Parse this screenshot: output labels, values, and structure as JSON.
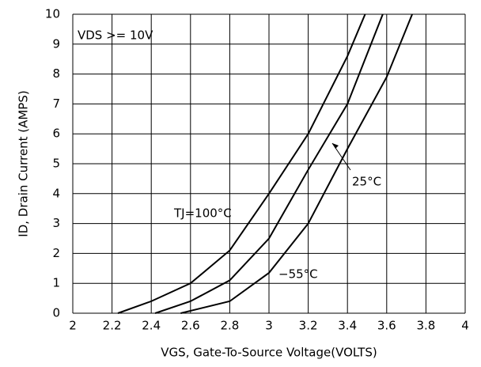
{
  "chart_data": {
    "type": "line",
    "xlabel": "VGS, Gate-To-Source Voltage(VOLTS)",
    "ylabel": "ID, Drain Current (AMPS)",
    "annotation": "VDS >= 10V",
    "xlim": [
      2,
      4
    ],
    "xticks": [
      2,
      2.2,
      2.4,
      2.6,
      2.8,
      3,
      3.2,
      3.4,
      3.6,
      3.8,
      4
    ],
    "ylim": [
      0,
      10
    ],
    "yticks": [
      0,
      1,
      2,
      3,
      4,
      5,
      6,
      7,
      8,
      9,
      10
    ],
    "grid": true,
    "series": [
      {
        "name": "TJ=100°C",
        "color": "#000000",
        "x": [
          2.23,
          2.4,
          2.6,
          2.8,
          3.0,
          3.2,
          3.4,
          3.49
        ],
        "values": [
          0,
          0.4,
          1.0,
          2.1,
          4.0,
          6.0,
          8.6,
          10
        ]
      },
      {
        "name": "25°C",
        "color": "#000000",
        "x": [
          2.42,
          2.6,
          2.8,
          3.0,
          3.2,
          3.4,
          3.58
        ],
        "values": [
          0,
          0.4,
          1.1,
          2.5,
          4.8,
          7.0,
          10
        ]
      },
      {
        "name": "−55°C",
        "color": "#000000",
        "x": [
          2.55,
          2.8,
          3.0,
          3.2,
          3.4,
          3.6,
          3.73
        ],
        "values": [
          0,
          0.4,
          1.35,
          3.0,
          5.5,
          7.9,
          10
        ]
      }
    ]
  }
}
